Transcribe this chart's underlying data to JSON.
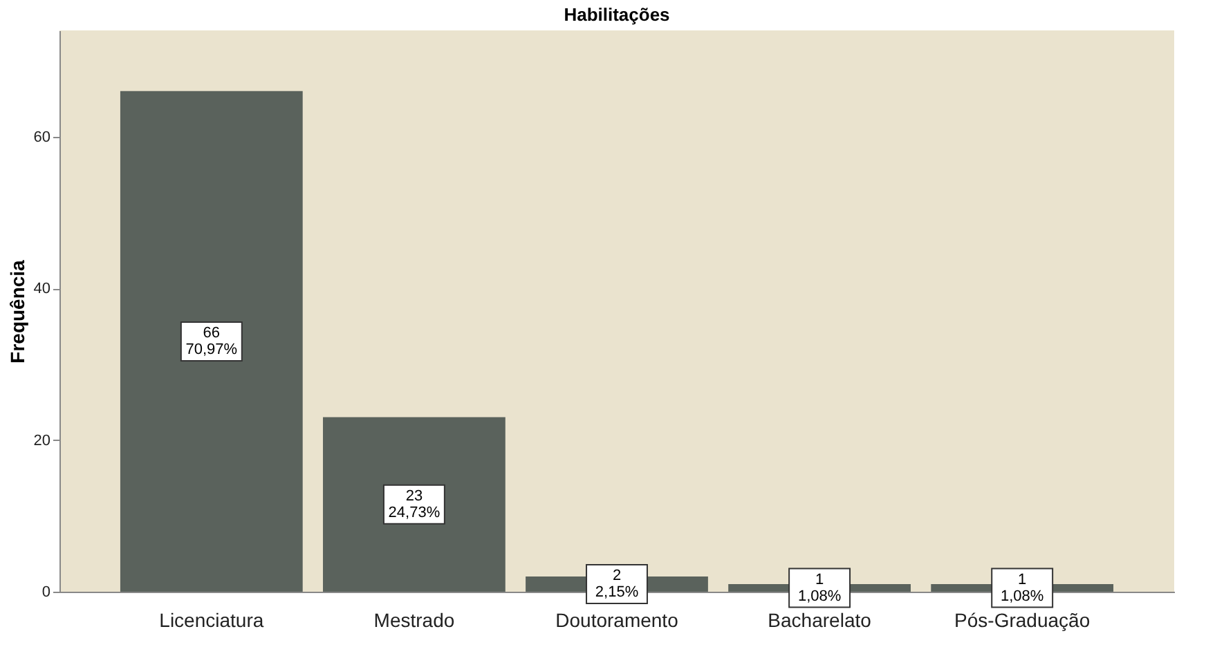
{
  "chart_data": {
    "type": "bar",
    "title": "Habilitações",
    "ylabel": "Frequência",
    "categories": [
      "Licenciatura",
      "Mestrado",
      "Doutoramento",
      "Bacharelato",
      "Pós-Graduação"
    ],
    "values": [
      66,
      23,
      2,
      1,
      1
    ],
    "value_labels": [
      "66\n70,97%",
      "23\n24,73%",
      "2\n2,15%",
      "1\n1,08%",
      "1\n1,08%"
    ],
    "color": "#5a625c",
    "ylim": [
      0,
      74
    ],
    "yticks": [
      0,
      20,
      40,
      60
    ],
    "grid": false
  }
}
